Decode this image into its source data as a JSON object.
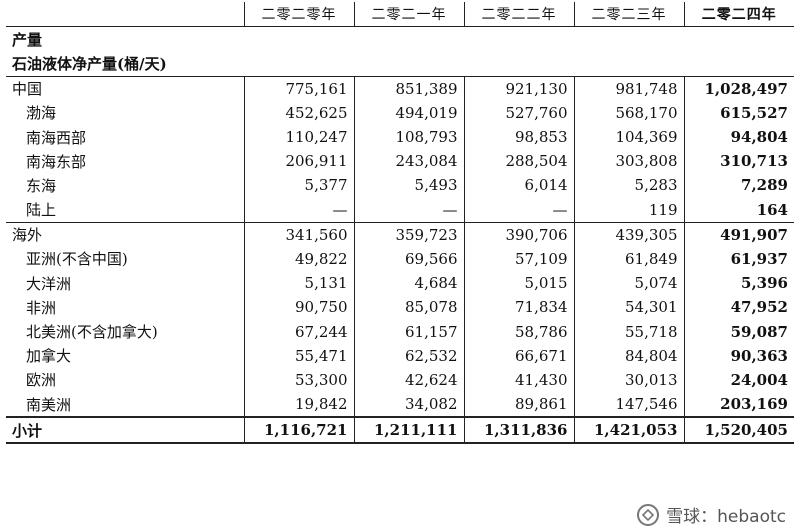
{
  "years": [
    "二零二零年",
    "二零二一年",
    "二零二二年",
    "二零二三年",
    "二零二四年"
  ],
  "section_title": "产量",
  "subsection_title": "石油液体净产量(桶/天)",
  "rows": [
    {
      "label": "中国",
      "values": [
        "775,161",
        "851,389",
        "921,130",
        "981,748",
        "1,028,497"
      ],
      "indent": false,
      "group_top": true
    },
    {
      "label": "渤海",
      "values": [
        "452,625",
        "494,019",
        "527,760",
        "568,170",
        "615,527"
      ],
      "indent": true
    },
    {
      "label": "南海西部",
      "values": [
        "110,247",
        "108,793",
        "98,853",
        "104,369",
        "94,804"
      ],
      "indent": true
    },
    {
      "label": "南海东部",
      "values": [
        "206,911",
        "243,084",
        "288,504",
        "303,808",
        "310,713"
      ],
      "indent": true
    },
    {
      "label": "东海",
      "values": [
        "5,377",
        "5,493",
        "6,014",
        "5,283",
        "7,289"
      ],
      "indent": true
    },
    {
      "label": "陆上",
      "values": [
        "—",
        "—",
        "—",
        "119",
        "164"
      ],
      "indent": true
    },
    {
      "label": "海外",
      "values": [
        "341,560",
        "359,723",
        "390,706",
        "439,305",
        "491,907"
      ],
      "indent": false,
      "group_top": true
    },
    {
      "label": "亚洲(不含中国)",
      "values": [
        "49,822",
        "69,566",
        "57,109",
        "61,849",
        "61,937"
      ],
      "indent": true
    },
    {
      "label": "大洋洲",
      "values": [
        "5,131",
        "4,684",
        "5,015",
        "5,074",
        "5,396"
      ],
      "indent": true
    },
    {
      "label": "非洲",
      "values": [
        "90,750",
        "85,078",
        "71,834",
        "54,301",
        "47,952"
      ],
      "indent": true
    },
    {
      "label": "北美洲(不含加拿大)",
      "values": [
        "67,244",
        "61,157",
        "58,786",
        "55,718",
        "59,087"
      ],
      "indent": true
    },
    {
      "label": "加拿大",
      "values": [
        "55,471",
        "62,532",
        "66,671",
        "84,804",
        "90,363"
      ],
      "indent": true
    },
    {
      "label": "欧洲",
      "values": [
        "53,300",
        "42,624",
        "41,430",
        "30,013",
        "24,004"
      ],
      "indent": true
    },
    {
      "label": "南美洲",
      "values": [
        "19,842",
        "34,082",
        "89,861",
        "147,546",
        "203,169"
      ],
      "indent": true
    }
  ],
  "total": {
    "label": "小计",
    "values": [
      "1,116,721",
      "1,211,111",
      "1,311,836",
      "1,421,053",
      "1,520,405"
    ]
  },
  "watermark": {
    "text": "雪球：hebaotc",
    "icon": "snowball-logo-icon"
  }
}
